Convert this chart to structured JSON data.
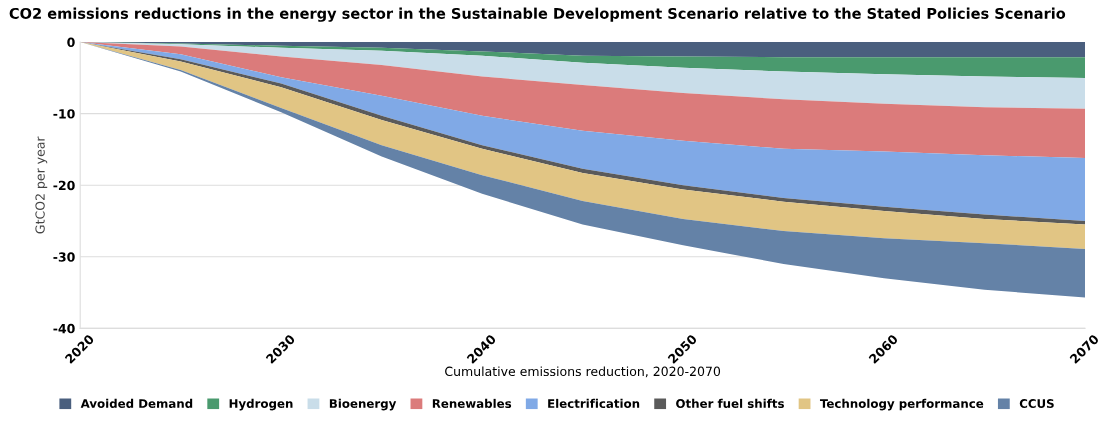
{
  "chart_data": {
    "type": "area",
    "stacked": true,
    "title": "CO2 emissions reductions in the energy sector in the Sustainable Development Scenario relative to the Stated Policies Scenario",
    "xlabel": "Cumulative emissions reduction, 2020-2070",
    "ylabel": "GtCO2 per year",
    "x": [
      2020,
      2025,
      2030,
      2035,
      2040,
      2045,
      2050,
      2055,
      2060,
      2065,
      2070
    ],
    "series": [
      {
        "name": "Avoided Demand",
        "color": "#4a5f7e",
        "values": [
          0,
          -0.2,
          -0.5,
          -0.8,
          -1.3,
          -1.9,
          -2.0,
          -2.1,
          -2.1,
          -2.1,
          -2.1
        ]
      },
      {
        "name": "Hydrogen",
        "color": "#4a9a6e",
        "values": [
          0,
          -0.1,
          -0.3,
          -0.4,
          -0.6,
          -1.0,
          -1.6,
          -2.0,
          -2.4,
          -2.7,
          -2.9
        ]
      },
      {
        "name": "Bioenergy",
        "color": "#c9dde9",
        "values": [
          0,
          -0.3,
          -1.2,
          -2.0,
          -2.9,
          -3.1,
          -3.5,
          -3.9,
          -4.1,
          -4.3,
          -4.3
        ]
      },
      {
        "name": "Renewables",
        "color": "#db7b7b",
        "values": [
          0,
          -1.1,
          -2.9,
          -4.3,
          -5.5,
          -6.4,
          -6.7,
          -6.9,
          -6.7,
          -6.7,
          -6.9
        ]
      },
      {
        "name": "Electrification",
        "color": "#80a9e6",
        "values": [
          0,
          -0.7,
          -0.9,
          -2.8,
          -4.1,
          -5.3,
          -6.2,
          -6.9,
          -7.7,
          -8.3,
          -8.8
        ]
      },
      {
        "name": "Other fuel shifts",
        "color": "#5a5a5a",
        "values": [
          0,
          -0.3,
          -0.5,
          -0.6,
          -0.5,
          -0.6,
          -0.6,
          -0.5,
          -0.6,
          -0.6,
          -0.5
        ]
      },
      {
        "name": "Technology performance",
        "color": "#e1c584",
        "values": [
          0,
          -1.2,
          -2.9,
          -3.5,
          -3.7,
          -3.9,
          -4.1,
          -4.1,
          -3.8,
          -3.4,
          -3.4
        ]
      },
      {
        "name": "CCUS",
        "color": "#6482a7",
        "values": [
          0,
          -0.2,
          -0.6,
          -1.6,
          -2.6,
          -3.3,
          -3.7,
          -4.6,
          -5.6,
          -6.5,
          -6.8
        ]
      }
    ],
    "xlim": [
      2020,
      2070
    ],
    "xticks": [
      2020,
      2030,
      2040,
      2050,
      2060,
      2070
    ],
    "ylim": [
      -40,
      0
    ],
    "yticks": [
      -40,
      -30,
      -20,
      -10,
      0
    ],
    "grid": "y",
    "legend": "bottom"
  }
}
